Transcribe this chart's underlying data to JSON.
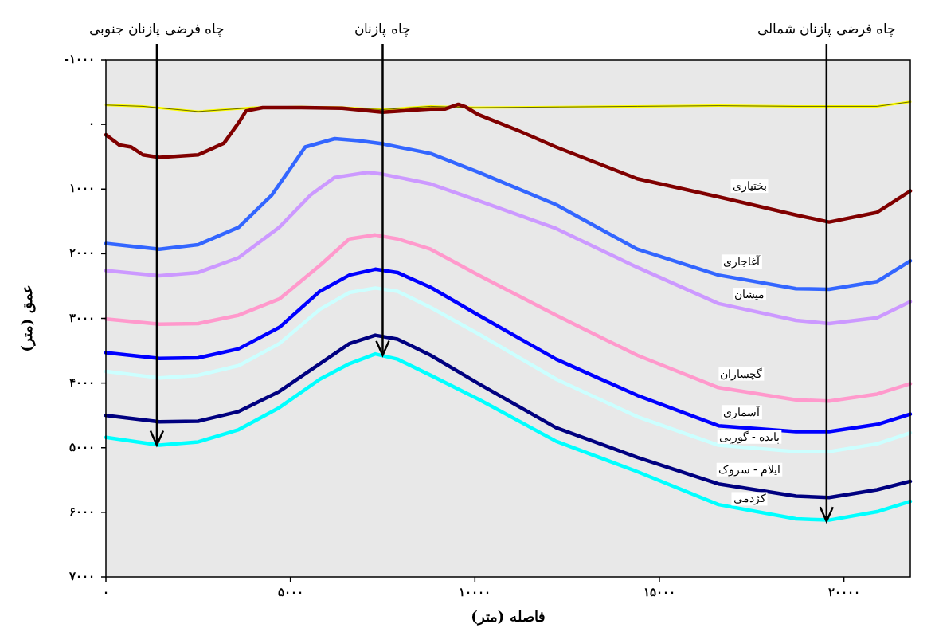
{
  "chart_data": {
    "type": "line",
    "xlabel": "فاصله (متر)",
    "ylabel": "عمق (متر)",
    "xlim": [
      0,
      21800
    ],
    "ylim": [
      7000,
      -1000
    ],
    "xticks": [
      {
        "value": 0,
        "label": "۰"
      },
      {
        "value": 5000,
        "label": "۵۰۰۰"
      },
      {
        "value": 10000,
        "label": "۱۰۰۰۰"
      },
      {
        "value": 15000,
        "label": "۱۵۰۰۰"
      },
      {
        "value": 20000,
        "label": "۲۰۰۰۰"
      }
    ],
    "yticks": [
      {
        "value": -1000,
        "label": "-۱۰۰۰"
      },
      {
        "value": 0,
        "label": "۰"
      },
      {
        "value": 1000,
        "label": "۱۰۰۰"
      },
      {
        "value": 2000,
        "label": "۲۰۰۰"
      },
      {
        "value": 3000,
        "label": "۳۰۰۰"
      },
      {
        "value": 4000,
        "label": "۴۰۰۰"
      },
      {
        "value": 5000,
        "label": "۵۰۰۰"
      },
      {
        "value": 6000,
        "label": "۶۰۰۰"
      },
      {
        "value": 7000,
        "label": "۷۰۰۰"
      }
    ],
    "grid": false,
    "marker": "none",
    "line_style": "solid",
    "series": [
      {
        "color": "#ffff00",
        "x": [
          0,
          1000,
          2500,
          4000,
          5300,
          6400,
          7500,
          8800,
          10000,
          12300,
          14400,
          16600,
          18700,
          19600,
          20900,
          21800
        ],
        "values": [
          -300,
          -280,
          -200,
          -260,
          -270,
          -260,
          -230,
          -280,
          -260,
          -270,
          -280,
          -290,
          -280,
          -280,
          -280,
          -350
        ]
      },
      {
        "name": "بختیاری",
        "color": "#800000",
        "x": [
          0,
          370,
          690,
          1000,
          1450,
          2500,
          3200,
          3600,
          3800,
          4250,
          5300,
          6400,
          7500,
          8800,
          9200,
          9550,
          9750,
          10100,
          11200,
          12200,
          14400,
          16600,
          18700,
          19600,
          20900,
          21800
        ],
        "values": [
          160,
          320,
          350,
          470,
          510,
          470,
          290,
          -30,
          -210,
          -260,
          -260,
          -250,
          -190,
          -240,
          -240,
          -310,
          -270,
          -150,
          100,
          350,
          840,
          1120,
          1400,
          1510,
          1360,
          1030
        ]
      },
      {
        "name": "آغاجاری",
        "color": "#3366ff",
        "x": [
          0,
          1450,
          2500,
          3600,
          4500,
          5100,
          5400,
          6200,
          6850,
          7500,
          8800,
          10100,
          12200,
          14400,
          16600,
          18700,
          19600,
          20900,
          21800
        ],
        "values": [
          1840,
          1930,
          1860,
          1590,
          1090,
          600,
          350,
          220,
          250,
          300,
          450,
          740,
          1240,
          1930,
          2330,
          2540,
          2550,
          2430,
          2110
        ]
      },
      {
        "name": "میشان",
        "color": "#cc99ff",
        "x": [
          0,
          1450,
          2500,
          3600,
          4700,
          5550,
          6200,
          7100,
          7500,
          8800,
          10100,
          12200,
          14400,
          16600,
          18700,
          19600,
          20900,
          21800
        ],
        "values": [
          2260,
          2340,
          2290,
          2060,
          1590,
          1090,
          820,
          740,
          770,
          920,
          1180,
          1610,
          2210,
          2770,
          3030,
          3080,
          2990,
          2740
        ]
      },
      {
        "name": "گچساران",
        "color": "#ff99cc",
        "x": [
          0,
          1450,
          2500,
          3600,
          4700,
          5800,
          6600,
          7300,
          7900,
          8800,
          10100,
          12200,
          14400,
          16600,
          18700,
          19600,
          20900,
          21800
        ],
        "values": [
          3010,
          3090,
          3080,
          2950,
          2700,
          2180,
          1770,
          1710,
          1770,
          1930,
          2330,
          2950,
          3570,
          4070,
          4260,
          4280,
          4170,
          4010
        ]
      },
      {
        "name": "آسماری",
        "color": "#0000ff",
        "x": [
          0,
          1450,
          2500,
          3600,
          4700,
          5800,
          6600,
          7300,
          7900,
          8800,
          10100,
          12200,
          14400,
          16600,
          18700,
          19600,
          20900,
          21800
        ],
        "values": [
          3530,
          3620,
          3610,
          3470,
          3140,
          2580,
          2330,
          2240,
          2290,
          2520,
          2950,
          3630,
          4190,
          4660,
          4750,
          4750,
          4640,
          4480
        ]
      },
      {
        "name": "پابده - گورپی",
        "color": "#ccffff",
        "x": [
          0,
          1450,
          2500,
          3600,
          4700,
          5800,
          6600,
          7300,
          7900,
          8800,
          10100,
          12200,
          14400,
          16600,
          18700,
          19600,
          20900,
          21800
        ],
        "values": [
          3820,
          3920,
          3880,
          3730,
          3390,
          2860,
          2600,
          2530,
          2580,
          2830,
          3240,
          3940,
          4520,
          4960,
          5060,
          5060,
          4940,
          4770
        ]
      },
      {
        "name": "ایلام - سروک",
        "color": "#000080",
        "x": [
          0,
          1450,
          2500,
          3600,
          4700,
          5800,
          6600,
          7300,
          7900,
          8800,
          10100,
          12200,
          14400,
          16600,
          18700,
          19600,
          20900,
          21800
        ],
        "values": [
          4500,
          4600,
          4590,
          4440,
          4130,
          3700,
          3390,
          3260,
          3320,
          3570,
          4010,
          4690,
          5150,
          5560,
          5750,
          5770,
          5650,
          5520
        ]
      },
      {
        "name": "کژدمی",
        "color": "#00ffff",
        "x": [
          0,
          1450,
          2500,
          3600,
          4700,
          5800,
          6600,
          7300,
          7900,
          8800,
          10100,
          12200,
          14400,
          16600,
          18700,
          19600,
          20900,
          21800
        ],
        "values": [
          4840,
          4960,
          4910,
          4720,
          4380,
          3940,
          3700,
          3550,
          3630,
          3880,
          4250,
          4900,
          5370,
          5880,
          6100,
          6120,
          5990,
          5830
        ]
      }
    ],
    "annotations": [
      {
        "text": "چاه فرضی پازنان جنوبی",
        "x": 1380,
        "y": 4960
      },
      {
        "text": "چاه پازنان",
        "x": 7500,
        "y": 3570
      },
      {
        "text": "چاه فرضی پازنان شمالی",
        "x": 19530,
        "y": 6140
      }
    ]
  }
}
